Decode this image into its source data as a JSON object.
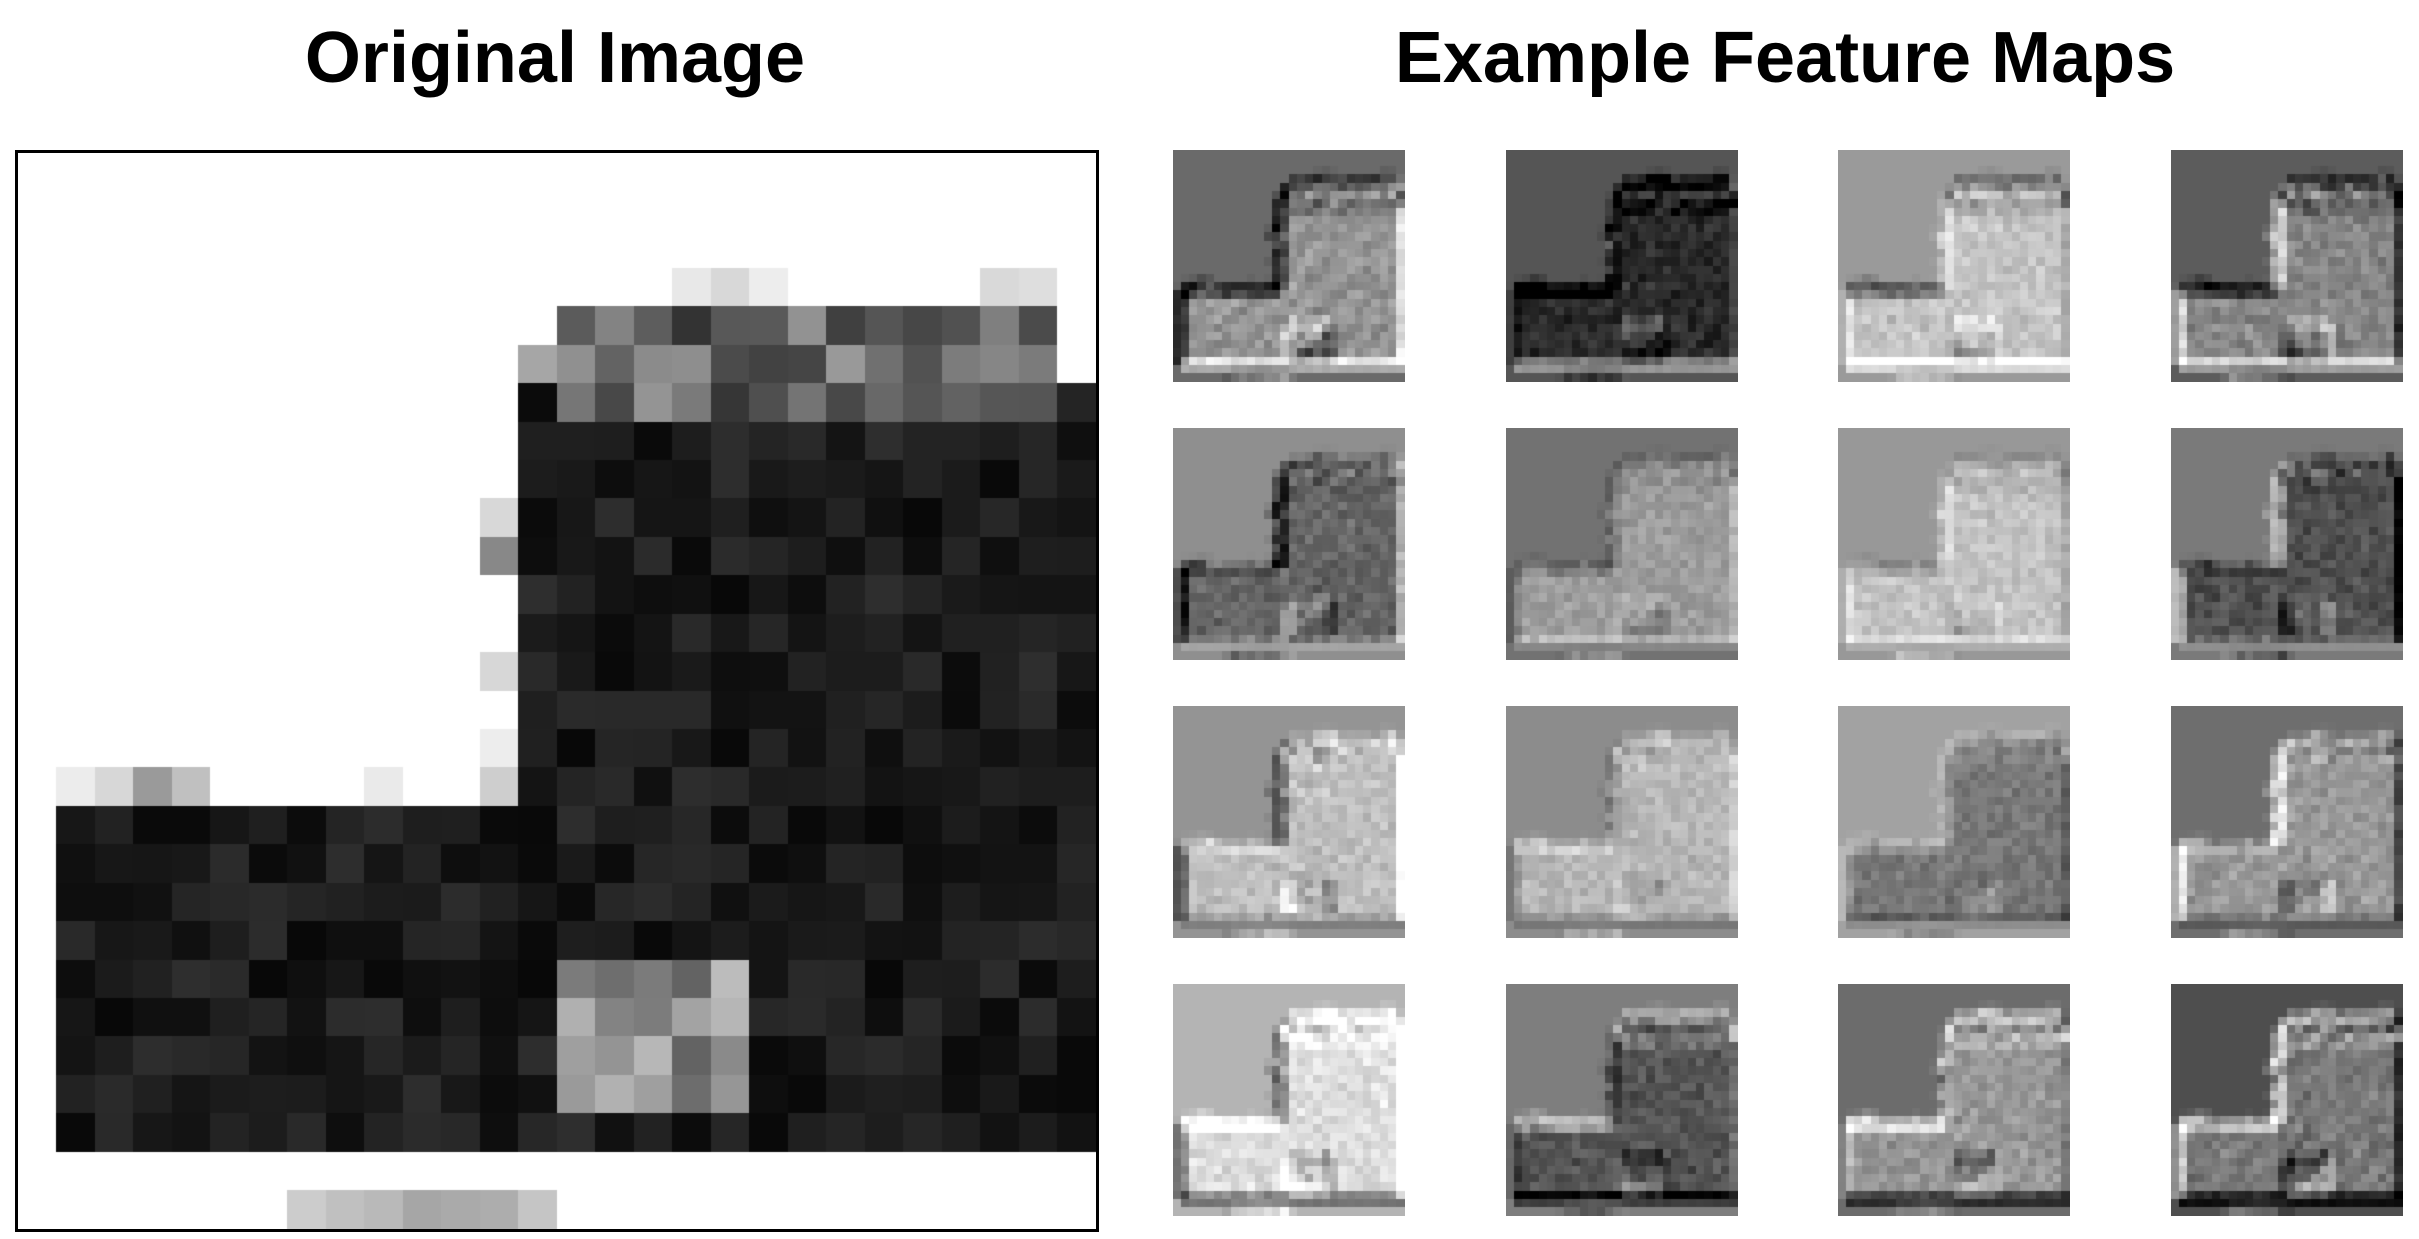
{
  "left_panel": {
    "title": "Original Image",
    "image": {
      "description_name": "boot-image",
      "grid_size": 28
    }
  },
  "right_panel": {
    "title": "Example Feature Maps",
    "rows": 4,
    "cols": 4,
    "maps": [
      {
        "id": "fm-1",
        "background": "#6a6a6a"
      },
      {
        "id": "fm-2",
        "background": "#555555"
      },
      {
        "id": "fm-3",
        "background": "#9a9a9a"
      },
      {
        "id": "fm-4",
        "background": "#5c5c5c"
      },
      {
        "id": "fm-5",
        "background": "#8f8f8f"
      },
      {
        "id": "fm-6",
        "background": "#727272"
      },
      {
        "id": "fm-7",
        "background": "#989898"
      },
      {
        "id": "fm-8",
        "background": "#7a7a7a"
      },
      {
        "id": "fm-9",
        "background": "#949494"
      },
      {
        "id": "fm-10",
        "background": "#8c8c8c"
      },
      {
        "id": "fm-11",
        "background": "#a2a2a2"
      },
      {
        "id": "fm-12",
        "background": "#6e6e6e"
      },
      {
        "id": "fm-13",
        "background": "#b4b4b4"
      },
      {
        "id": "fm-14",
        "background": "#7e7e7e"
      },
      {
        "id": "fm-15",
        "background": "#6c6c6c"
      },
      {
        "id": "fm-16",
        "background": "#4e4e4e"
      }
    ]
  }
}
